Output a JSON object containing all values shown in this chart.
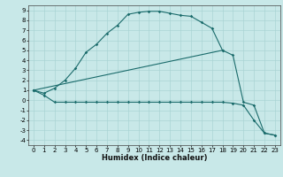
{
  "xlabel": "Humidex (Indice chaleur)",
  "bg_color": "#c8e8e8",
  "grid_color": "#aad4d4",
  "line_color": "#1a6b6b",
  "xlim": [
    -0.5,
    23.5
  ],
  "ylim": [
    -4.5,
    9.5
  ],
  "xticks": [
    0,
    1,
    2,
    3,
    4,
    5,
    6,
    7,
    8,
    9,
    10,
    11,
    12,
    13,
    14,
    15,
    16,
    17,
    18,
    19,
    20,
    21,
    22,
    23
  ],
  "yticks": [
    -4,
    -3,
    -2,
    -1,
    0,
    1,
    2,
    3,
    4,
    5,
    6,
    7,
    8,
    9
  ],
  "curve1_x": [
    0,
    1,
    2,
    3,
    4,
    5,
    6,
    7,
    8,
    9,
    10,
    11,
    12,
    13,
    14,
    15,
    16,
    17,
    18
  ],
  "curve1_y": [
    1.0,
    0.7,
    1.2,
    2.0,
    3.2,
    4.8,
    5.6,
    6.7,
    7.5,
    8.6,
    8.8,
    8.9,
    8.9,
    8.7,
    8.5,
    8.4,
    7.8,
    7.2,
    5.0
  ],
  "curve2_x": [
    0,
    1,
    2,
    3,
    4,
    5,
    6,
    7,
    8,
    9,
    10,
    11,
    12,
    13,
    14,
    15,
    16,
    17,
    18,
    19,
    20,
    21,
    22,
    23
  ],
  "curve2_y": [
    1.0,
    0.5,
    -0.2,
    -0.2,
    -0.2,
    -0.2,
    -0.2,
    -0.2,
    -0.2,
    -0.2,
    -0.2,
    -0.2,
    -0.2,
    -0.2,
    -0.2,
    -0.2,
    -0.2,
    -0.2,
    -0.2,
    -0.3,
    -0.5,
    -2.0,
    -3.3,
    -3.5
  ],
  "curve3_x": [
    0,
    18,
    19,
    20,
    21,
    22,
    23
  ],
  "curve3_y": [
    1.0,
    5.0,
    4.5,
    -0.2,
    -0.5,
    -3.3,
    -3.5
  ],
  "tick_fontsize": 5.0,
  "xlabel_fontsize": 6.0,
  "marker_size": 1.8,
  "line_width": 0.8
}
